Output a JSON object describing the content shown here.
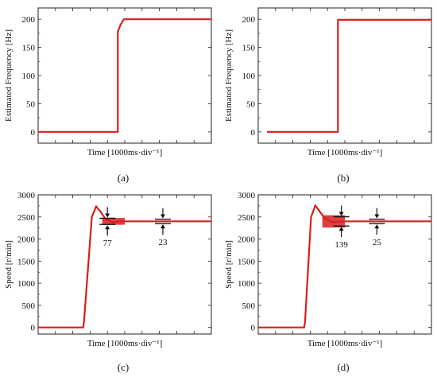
{
  "chart_data": [
    {
      "id": "a",
      "type": "line",
      "caption": "(a)",
      "xlabel": "Time [1000ms·div⁻¹]",
      "ylabel": "Estimated Frequency [Hz]",
      "ylim": [
        -20,
        220
      ],
      "xlim": [
        0,
        10
      ],
      "yticks": [
        0,
        50,
        100,
        150,
        200
      ],
      "grid": false,
      "color": "#d81e1e",
      "series": [
        {
          "x": [
            0,
            4.6,
            4.6,
            4.75,
            4.95,
            10
          ],
          "y": [
            0,
            0,
            178,
            190,
            200,
            200
          ]
        }
      ]
    },
    {
      "id": "b",
      "type": "line",
      "caption": "(b)",
      "xlabel": "Time [1000ms·div⁻¹]",
      "ylabel": "Estimated Frequency [Hz]",
      "ylim": [
        -20,
        220
      ],
      "xlim": [
        0,
        10
      ],
      "yticks": [
        0,
        50,
        100,
        150,
        200
      ],
      "grid": false,
      "color": "#d81e1e",
      "series": [
        {
          "x": [
            0.5,
            4.6,
            4.6,
            10
          ],
          "y": [
            0,
            0,
            199,
            199
          ]
        }
      ]
    },
    {
      "id": "c",
      "type": "line",
      "caption": "(c)",
      "xlabel": "Time [1000ms·div⁻¹]",
      "ylabel": "Speed [r/min]",
      "ylim": [
        -150,
        3000
      ],
      "xlim": [
        0,
        10
      ],
      "yticks": [
        0,
        500,
        1000,
        1500,
        2000,
        2500,
        3000
      ],
      "grid": false,
      "color": "#d81e1e",
      "series": [
        {
          "x": [
            0,
            2.6,
            2.65,
            3.1,
            3.35,
            3.6,
            3.9,
            4.3,
            4.7,
            10
          ],
          "y": [
            0,
            0,
            150,
            2500,
            2740,
            2620,
            2450,
            2380,
            2400,
            2400
          ]
        }
      ],
      "annotations": [
        {
          "x": 4.0,
          "y": 2400,
          "label": "77",
          "band": 77,
          "arrow_span": 140,
          "band_from": 3.7,
          "band_to": 5.0
        },
        {
          "x": 7.2,
          "y": 2400,
          "label": "23",
          "band": 23,
          "arrow_span": 100
        }
      ]
    },
    {
      "id": "d",
      "type": "line",
      "caption": "(d)",
      "xlabel": "Time [1000ms·div⁻¹]",
      "ylabel": "Speed [r/min]",
      "ylim": [
        -150,
        3000
      ],
      "xlim": [
        0,
        10
      ],
      "yticks": [
        0,
        500,
        1000,
        1500,
        2000,
        2500,
        3000
      ],
      "grid": false,
      "color": "#d81e1e",
      "series": [
        {
          "x": [
            0,
            2.65,
            2.7,
            3.05,
            3.3,
            3.55,
            3.85,
            4.3,
            4.8,
            10
          ],
          "y": [
            0,
            0,
            120,
            2500,
            2760,
            2620,
            2470,
            2380,
            2400,
            2400
          ]
        }
      ],
      "annotations": [
        {
          "x": 4.8,
          "y": 2400,
          "label": "139",
          "band": 139,
          "arrow_span": 210,
          "band_from": 3.7,
          "band_to": 5.0
        },
        {
          "x": 6.85,
          "y": 2400,
          "label": "25",
          "band": 25,
          "arrow_span": 100
        }
      ]
    }
  ]
}
